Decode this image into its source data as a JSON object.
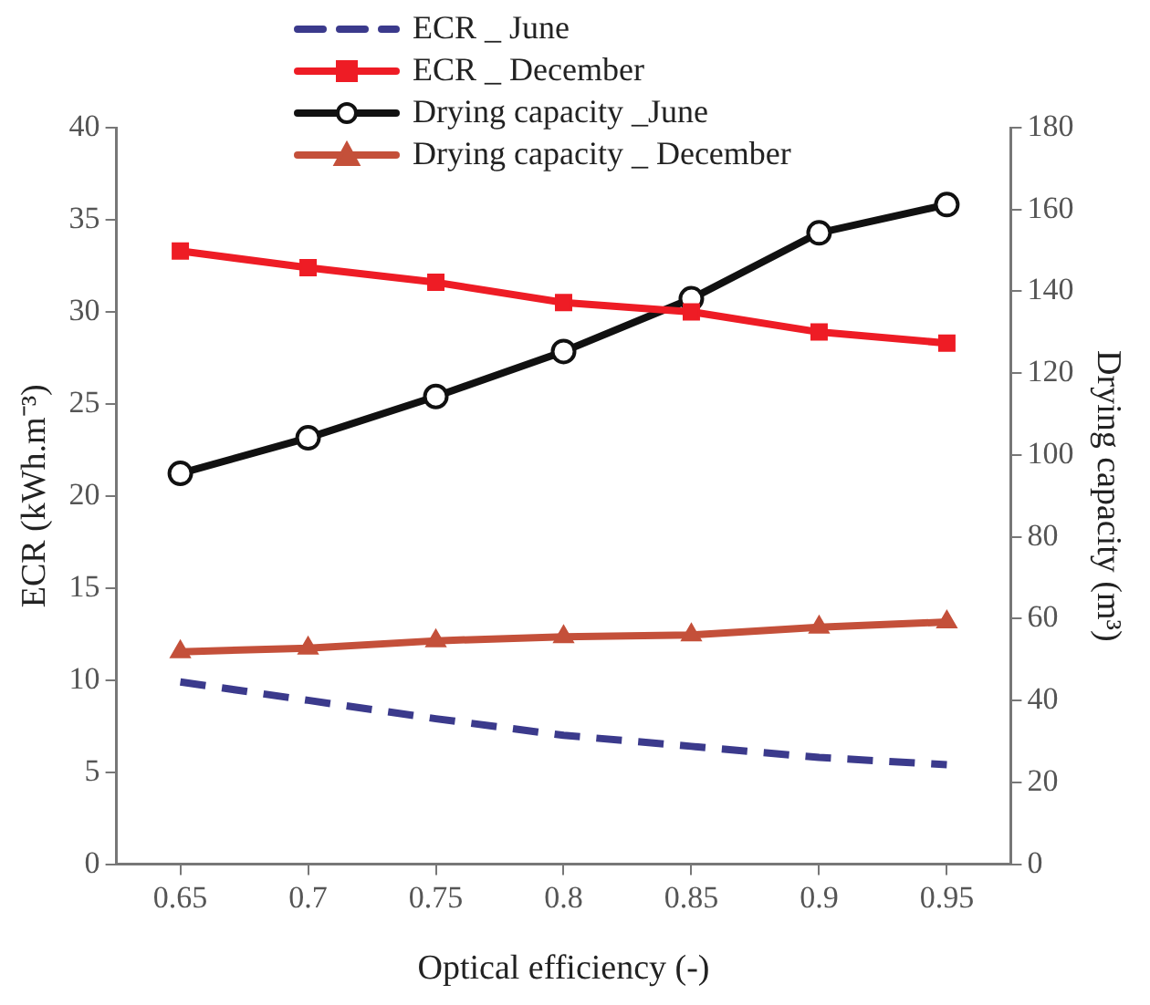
{
  "chart_data": {
    "type": "line",
    "xlabel": "Optical efficiency (-)",
    "ylabel": "ECR (kWh.m⁻³)",
    "y2label": "Drying capacity (m³)",
    "categories": [
      "0.65",
      "0.7",
      "0.75",
      "0.8",
      "0.85",
      "0.9",
      "0.95"
    ],
    "ylim": [
      0,
      40
    ],
    "yticks": [
      0,
      5,
      10,
      15,
      20,
      25,
      30,
      35,
      40
    ],
    "y2lim": [
      0,
      180
    ],
    "y2ticks": [
      0,
      20,
      40,
      60,
      80,
      100,
      120,
      140,
      160,
      180
    ],
    "grid": false,
    "legend": "top",
    "series": [
      {
        "name": "ECR _ June",
        "color": "#3b3a8c",
        "marker": "none",
        "line_style": "dashed",
        "values": [
          9.9,
          8.9,
          7.9,
          7.0,
          6.4,
          5.8,
          5.4
        ]
      },
      {
        "name": "ECR _ December",
        "color": "#ee1c25",
        "marker": "square",
        "line_style": "solid",
        "values": [
          33.3,
          32.4,
          31.6,
          30.5,
          30.0,
          28.9,
          28.3
        ]
      },
      {
        "name": "Drying capacity _June",
        "color": "#111111",
        "marker": "circle",
        "line_style": "solid",
        "axis": "y2",
        "values": [
          95.5,
          104.2,
          114.3,
          125.3,
          138.2,
          154.3,
          161.2
        ]
      },
      {
        "name": "Drying capacity _ December",
        "color": "#c4503a",
        "marker": "triangle",
        "line_style": "solid",
        "axis": "y2",
        "values": [
          51.9,
          52.8,
          54.6,
          55.6,
          56.0,
          57.9,
          59.2
        ]
      }
    ]
  }
}
